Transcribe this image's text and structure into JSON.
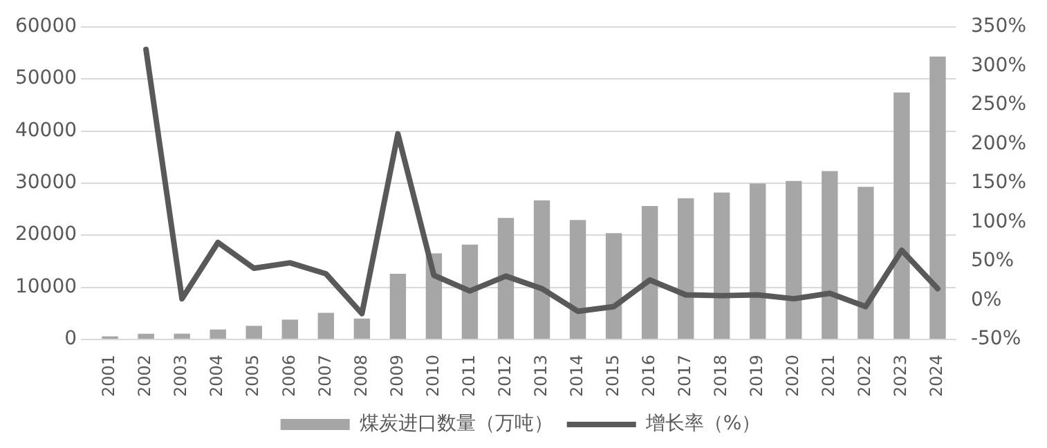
{
  "chart_data": {
    "type": "bar",
    "categories": [
      "2001",
      "2002",
      "2003",
      "2004",
      "2005",
      "2006",
      "2007",
      "2008",
      "2009",
      "2010",
      "2011",
      "2012",
      "2013",
      "2014",
      "2015",
      "2016",
      "2017",
      "2018",
      "2019",
      "2020",
      "2021",
      "2022",
      "2023",
      "2024"
    ],
    "series": [
      {
        "name": "煤炭进口数量（万吨）",
        "color": "#a6a6a6",
        "values": [
          600,
          1100,
          1100,
          1900,
          2600,
          3800,
          5100,
          4000,
          12600,
          16500,
          18200,
          23300,
          26700,
          22900,
          20400,
          25600,
          27100,
          28200,
          29900,
          30400,
          32300,
          29300,
          47400,
          54300
        ]
      },
      {
        "name": "增长率（%）",
        "type": "line",
        "axis": "y2",
        "color": "#595959",
        "values": [
          null,
          321,
          2,
          74,
          41,
          48,
          34,
          -17,
          213,
          32,
          12,
          31,
          15,
          -14,
          -8,
          26,
          7,
          6,
          7,
          2,
          9,
          -8,
          64,
          15
        ]
      }
    ],
    "ylim": [
      0,
      60000
    ],
    "yticks": [
      0,
      10000,
      20000,
      30000,
      40000,
      50000,
      60000
    ],
    "y2lim": [
      -50,
      350
    ],
    "y2ticks": [
      {
        "value": -50,
        "label": "-50%"
      },
      {
        "value": 0,
        "label": "0%"
      },
      {
        "value": 50,
        "label": "50%"
      },
      {
        "value": 100,
        "label": "100%"
      },
      {
        "value": 150,
        "label": "150%"
      },
      {
        "value": 200,
        "label": "200%"
      },
      {
        "value": 250,
        "label": "250%"
      },
      {
        "value": 300,
        "label": "300%"
      },
      {
        "value": 350,
        "label": "350%"
      }
    ],
    "grid": "y",
    "legend": "bottom",
    "marker": "none"
  }
}
